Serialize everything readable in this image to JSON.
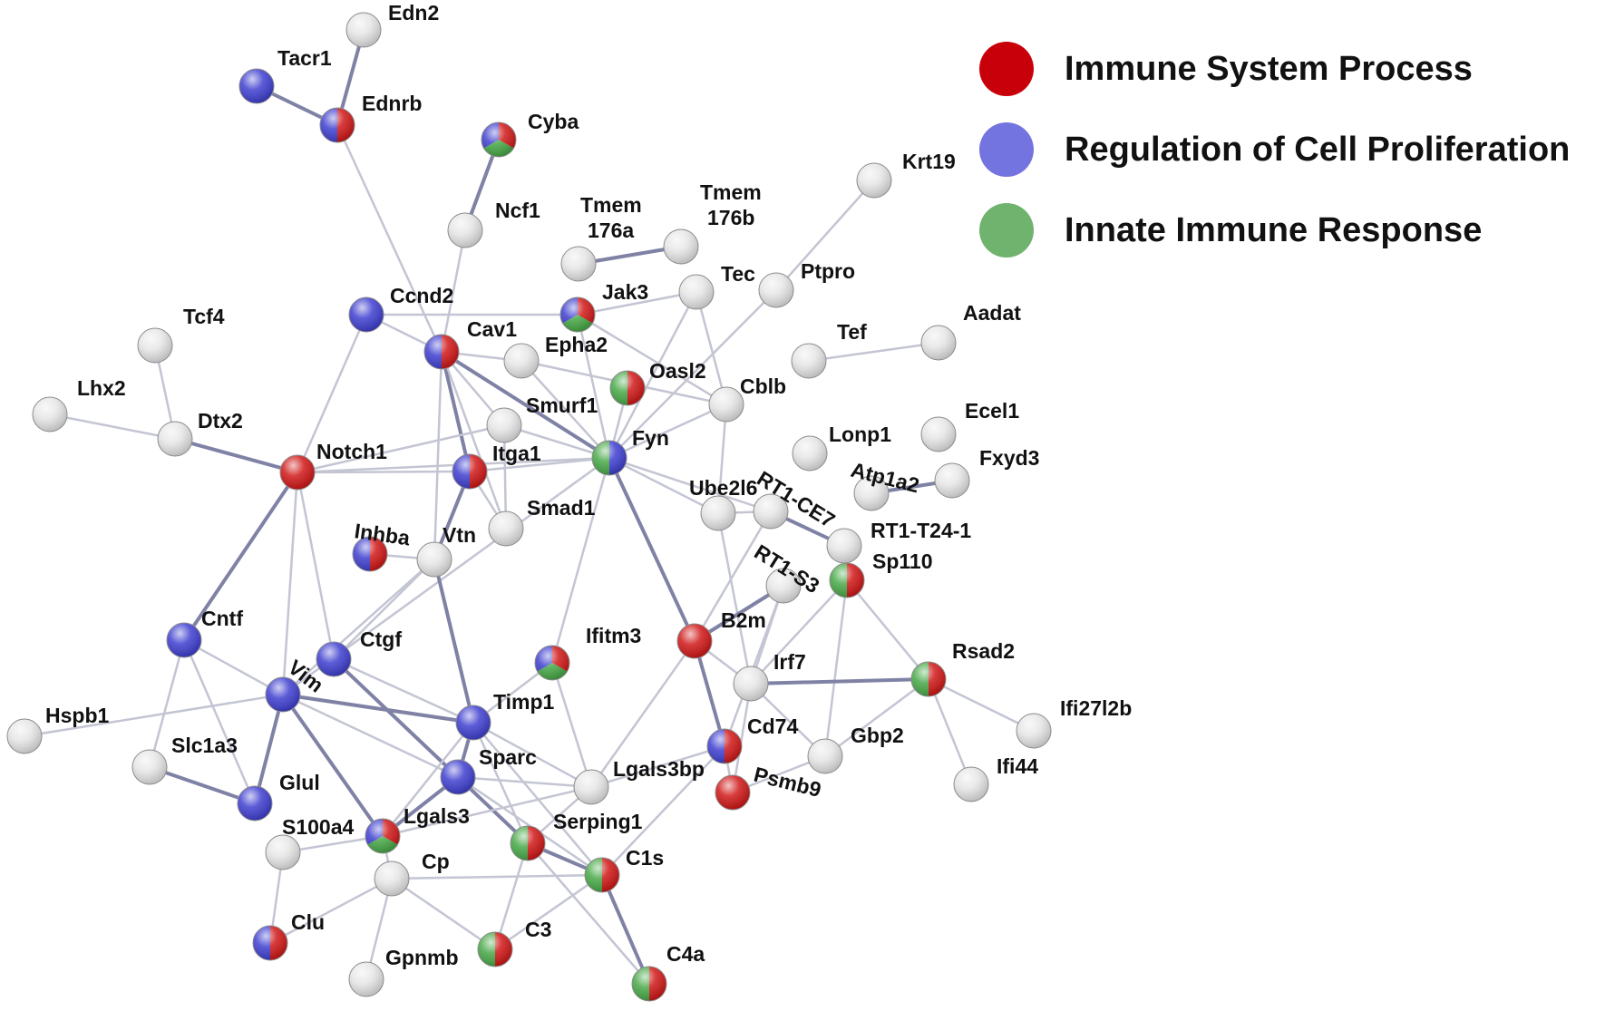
{
  "legend": {
    "items": [
      {
        "label": "Immune System Process",
        "color": "#c8000a"
      },
      {
        "label": "Regulation of Cell Proliferation",
        "color": "#7474e0"
      },
      {
        "label": "Innate Immune Response",
        "color": "#6fb36f"
      }
    ]
  },
  "colors": {
    "red": "#d01818",
    "blue": "#3f3fd0",
    "green": "#47a847",
    "gray": "#e6e6e6"
  },
  "nodes": [
    {
      "id": "Edn2",
      "label": "Edn2",
      "cat": []
    },
    {
      "id": "Tacr1",
      "label": "Tacr1",
      "cat": [
        "blue"
      ]
    },
    {
      "id": "Ednrb",
      "label": "Ednrb",
      "cat": [
        "red",
        "blue"
      ]
    },
    {
      "id": "Cyba",
      "label": "Cyba",
      "cat": [
        "red",
        "green",
        "blue"
      ]
    },
    {
      "id": "Ncf1",
      "label": "Ncf1",
      "cat": []
    },
    {
      "id": "Tmem176a",
      "label": "Tmem 176a",
      "cat": []
    },
    {
      "id": "Tmem176b",
      "label": "Tmem 176b",
      "cat": []
    },
    {
      "id": "Krt19",
      "label": "Krt19",
      "cat": []
    },
    {
      "id": "Jak3",
      "label": "Jak3",
      "cat": [
        "red",
        "green",
        "blue"
      ]
    },
    {
      "id": "Tec",
      "label": "Tec",
      "cat": []
    },
    {
      "id": "Ptpro",
      "label": "Ptpro",
      "cat": []
    },
    {
      "id": "Ccnd2",
      "label": "Ccnd2",
      "cat": [
        "blue"
      ]
    },
    {
      "id": "Tcf4",
      "label": "Tcf4",
      "cat": []
    },
    {
      "id": "Aadat",
      "label": "Aadat",
      "cat": []
    },
    {
      "id": "Tef",
      "label": "Tef",
      "cat": []
    },
    {
      "id": "Cav1",
      "label": "Cav1",
      "cat": [
        "red",
        "blue"
      ]
    },
    {
      "id": "Epha2",
      "label": "Epha2",
      "cat": []
    },
    {
      "id": "Oasl2",
      "label": "Oasl2",
      "cat": [
        "red",
        "green"
      ]
    },
    {
      "id": "Cblb",
      "label": "Cblb",
      "cat": []
    },
    {
      "id": "Lhx2",
      "label": "Lhx2",
      "cat": []
    },
    {
      "id": "Dtx2",
      "label": "Dtx2",
      "cat": []
    },
    {
      "id": "Smurf1",
      "label": "Smurf1",
      "cat": []
    },
    {
      "id": "Fyn",
      "label": "Fyn",
      "cat": [
        "blue",
        "green"
      ]
    },
    {
      "id": "Notch1",
      "label": "Notch1",
      "cat": [
        "red"
      ]
    },
    {
      "id": "Itga1",
      "label": "Itga1",
      "cat": [
        "red",
        "blue"
      ]
    },
    {
      "id": "Lonp1",
      "label": "Lonp1",
      "cat": []
    },
    {
      "id": "Ecel1",
      "label": "Ecel1",
      "cat": []
    },
    {
      "id": "Atp1a2",
      "label": "Atp1a2",
      "cat": []
    },
    {
      "id": "Fxyd3",
      "label": "Fxyd3",
      "cat": []
    },
    {
      "id": "Ube2l6",
      "label": "Ube2l6",
      "cat": []
    },
    {
      "id": "RT1-CE7",
      "label": "RT1-CE7",
      "cat": []
    },
    {
      "id": "Smad1",
      "label": "Smad1",
      "cat": []
    },
    {
      "id": "RT1-T24-1",
      "label": "RT1-T24-1",
      "cat": []
    },
    {
      "id": "Inhba",
      "label": "Inhba",
      "cat": [
        "red",
        "blue"
      ]
    },
    {
      "id": "Vtn",
      "label": "Vtn",
      "cat": []
    },
    {
      "id": "RT1-S3",
      "label": "RT1-S3",
      "cat": []
    },
    {
      "id": "Sp110",
      "label": "Sp110",
      "cat": [
        "red",
        "green"
      ]
    },
    {
      "id": "Cntf",
      "label": "Cntf",
      "cat": [
        "blue"
      ]
    },
    {
      "id": "B2m",
      "label": "B2m",
      "cat": [
        "red"
      ]
    },
    {
      "id": "Ctgf",
      "label": "Ctgf",
      "cat": [
        "blue"
      ]
    },
    {
      "id": "Ifitm3",
      "label": "Ifitm3",
      "cat": [
        "red",
        "green",
        "blue"
      ]
    },
    {
      "id": "Rsad2",
      "label": "Rsad2",
      "cat": [
        "red",
        "green"
      ]
    },
    {
      "id": "Irf7",
      "label": "Irf7",
      "cat": []
    },
    {
      "id": "Vim",
      "label": "Vim",
      "cat": [
        "blue"
      ]
    },
    {
      "id": "Timp1",
      "label": "Timp1",
      "cat": [
        "blue"
      ]
    },
    {
      "id": "Ifi27l2b",
      "label": "Ifi27l2b",
      "cat": []
    },
    {
      "id": "Hspb1",
      "label": "Hspb1",
      "cat": []
    },
    {
      "id": "Cd74",
      "label": "Cd74",
      "cat": [
        "red",
        "blue"
      ]
    },
    {
      "id": "Gbp2",
      "label": "Gbp2",
      "cat": []
    },
    {
      "id": "Slc1a3",
      "label": "Slc1a3",
      "cat": []
    },
    {
      "id": "Sparc",
      "label": "Sparc",
      "cat": [
        "blue"
      ]
    },
    {
      "id": "Ifi44",
      "label": "Ifi44",
      "cat": []
    },
    {
      "id": "Lgals3bp",
      "label": "Lgals3bp",
      "cat": []
    },
    {
      "id": "Psmb9",
      "label": "Psmb9",
      "cat": [
        "red"
      ]
    },
    {
      "id": "Glul",
      "label": "Glul",
      "cat": [
        "blue"
      ]
    },
    {
      "id": "Serping1",
      "label": "Serping1",
      "cat": [
        "red",
        "green"
      ]
    },
    {
      "id": "S100a4",
      "label": "S100a4",
      "cat": []
    },
    {
      "id": "Lgals3",
      "label": "Lgals3",
      "cat": [
        "red",
        "green",
        "blue"
      ]
    },
    {
      "id": "C1s",
      "label": "C1s",
      "cat": [
        "red",
        "green"
      ]
    },
    {
      "id": "Cp",
      "label": "Cp",
      "cat": []
    },
    {
      "id": "Clu",
      "label": "Clu",
      "cat": [
        "red",
        "blue"
      ]
    },
    {
      "id": "C3",
      "label": "C3",
      "cat": [
        "red",
        "green"
      ]
    },
    {
      "id": "C4a",
      "label": "C4a",
      "cat": [
        "red",
        "green"
      ]
    },
    {
      "id": "Gpnmb",
      "label": "Gpnmb",
      "cat": []
    }
  ],
  "edges": [
    [
      "Edn2",
      "Ednrb"
    ],
    [
      "Tacr1",
      "Ednrb"
    ],
    [
      "Ednrb",
      "Cav1"
    ],
    [
      "Cyba",
      "Ncf1"
    ],
    [
      "Ncf1",
      "Cav1"
    ],
    [
      "Tmem176a",
      "Tmem176b"
    ],
    [
      "Krt19",
      "Ptpro"
    ],
    [
      "Ccnd2",
      "Jak3"
    ],
    [
      "Ccnd2",
      "Notch1"
    ],
    [
      "Ccnd2",
      "Cav1"
    ],
    [
      "Tcf4",
      "Dtx2"
    ],
    [
      "Lhx2",
      "Dtx2"
    ],
    [
      "Dtx2",
      "Notch1"
    ],
    [
      "Tec",
      "Jak3"
    ],
    [
      "Tec",
      "Cblb"
    ],
    [
      "Tec",
      "Fyn"
    ],
    [
      "Ptpro",
      "Fyn"
    ],
    [
      "Jak3",
      "Fyn"
    ],
    [
      "Jak3",
      "Cblb"
    ],
    [
      "Tef",
      "Aadat"
    ],
    [
      "Cav1",
      "Fyn"
    ],
    [
      "Cav1",
      "Epha2"
    ],
    [
      "Cav1",
      "Smurf1"
    ],
    [
      "Cav1",
      "Itga1"
    ],
    [
      "Cav1",
      "Smad1"
    ],
    [
      "Cav1",
      "Vtn"
    ],
    [
      "Epha2",
      "Fyn"
    ],
    [
      "Epha2",
      "Cblb"
    ],
    [
      "Oasl2",
      "Fyn"
    ],
    [
      "Cblb",
      "Fyn"
    ],
    [
      "Cblb",
      "Ube2l6"
    ],
    [
      "Smurf1",
      "Smad1"
    ],
    [
      "Smurf1",
      "Notch1"
    ],
    [
      "Smurf1",
      "Fyn"
    ],
    [
      "Notch1",
      "Fyn"
    ],
    [
      "Notch1",
      "Itga1"
    ],
    [
      "Notch1",
      "Cntf"
    ],
    [
      "Notch1",
      "Vim"
    ],
    [
      "Notch1",
      "Ctgf"
    ],
    [
      "Itga1",
      "Vtn"
    ],
    [
      "Itga1",
      "Fyn"
    ],
    [
      "Itga1",
      "Smad1"
    ],
    [
      "Fyn",
      "B2m"
    ],
    [
      "Fyn",
      "Ube2l6"
    ],
    [
      "Fyn",
      "Vim"
    ],
    [
      "Fyn",
      "RT1-CE7"
    ],
    [
      "Fyn",
      "Ifitm3"
    ],
    [
      "Atp1a2",
      "Fxyd3"
    ],
    [
      "Ube2l6",
      "RT1-CE7"
    ],
    [
      "Ube2l6",
      "Irf7"
    ],
    [
      "RT1-CE7",
      "RT1-T24-1"
    ],
    [
      "RT1-CE7",
      "B2m"
    ],
    [
      "RT1-S3",
      "B2m"
    ],
    [
      "RT1-S3",
      "Irf7"
    ],
    [
      "RT1-S3",
      "Cd74"
    ],
    [
      "Sp110",
      "Irf7"
    ],
    [
      "Sp110",
      "Rsad2"
    ],
    [
      "Sp110",
      "Gbp2"
    ],
    [
      "Inhba",
      "Vtn"
    ],
    [
      "Vtn",
      "Timp1"
    ],
    [
      "Vtn",
      "Ctgf"
    ],
    [
      "Vtn",
      "Vim"
    ],
    [
      "B2m",
      "Cd74"
    ],
    [
      "B2m",
      "Irf7"
    ],
    [
      "B2m",
      "Lgals3bp"
    ],
    [
      "Irf7",
      "Rsad2"
    ],
    [
      "Irf7",
      "Gbp2"
    ],
    [
      "Irf7",
      "Psmb9"
    ],
    [
      "Rsad2",
      "Gbp2"
    ],
    [
      "Rsad2",
      "Ifi44"
    ],
    [
      "Rsad2",
      "Ifi27l2b"
    ],
    [
      "Cd74",
      "Psmb9"
    ],
    [
      "Gbp2",
      "Psmb9"
    ],
    [
      "Ctgf",
      "Timp1"
    ],
    [
      "Ctgf",
      "Sparc"
    ],
    [
      "Vim",
      "Timp1"
    ],
    [
      "Vim",
      "Glul"
    ],
    [
      "Vim",
      "Sparc"
    ],
    [
      "Vim",
      "Lgals3"
    ],
    [
      "Vim",
      "Hspb1"
    ],
    [
      "Vim",
      "Cntf"
    ],
    [
      "Cntf",
      "Slc1a3"
    ],
    [
      "Cntf",
      "Glul"
    ],
    [
      "Timp1",
      "Sparc"
    ],
    [
      "Timp1",
      "Serping1"
    ],
    [
      "Timp1",
      "C1s"
    ],
    [
      "Timp1",
      "Lgals3bp"
    ],
    [
      "Timp1",
      "Lgals3"
    ],
    [
      "Timp1",
      "Ifitm3"
    ],
    [
      "Sparc",
      "Serping1"
    ],
    [
      "Sparc",
      "Lgals3"
    ],
    [
      "Sparc",
      "C1s"
    ],
    [
      "Sparc",
      "Lgals3bp"
    ],
    [
      "Slc1a3",
      "Glul"
    ],
    [
      "Lgals3",
      "Cp"
    ],
    [
      "Lgals3",
      "S100a4"
    ],
    [
      "Lgals3",
      "Lgals3bp"
    ],
    [
      "Serping1",
      "C1s"
    ],
    [
      "Serping1",
      "C3"
    ],
    [
      "Serping1",
      "Lgals3bp"
    ],
    [
      "C1s",
      "C4a"
    ],
    [
      "C1s",
      "C3"
    ],
    [
      "C1s",
      "Cp"
    ],
    [
      "Cp",
      "C3"
    ],
    [
      "Cp",
      "Gpnmb"
    ],
    [
      "Cp",
      "Clu"
    ],
    [
      "S100a4",
      "Clu"
    ],
    [
      "Ifitm3",
      "Lgals3bp"
    ],
    [
      "Lgals3bp",
      "Cd74"
    ],
    [
      "Cd74",
      "C1s"
    ],
    [
      "C4a",
      "Serping1"
    ]
  ]
}
